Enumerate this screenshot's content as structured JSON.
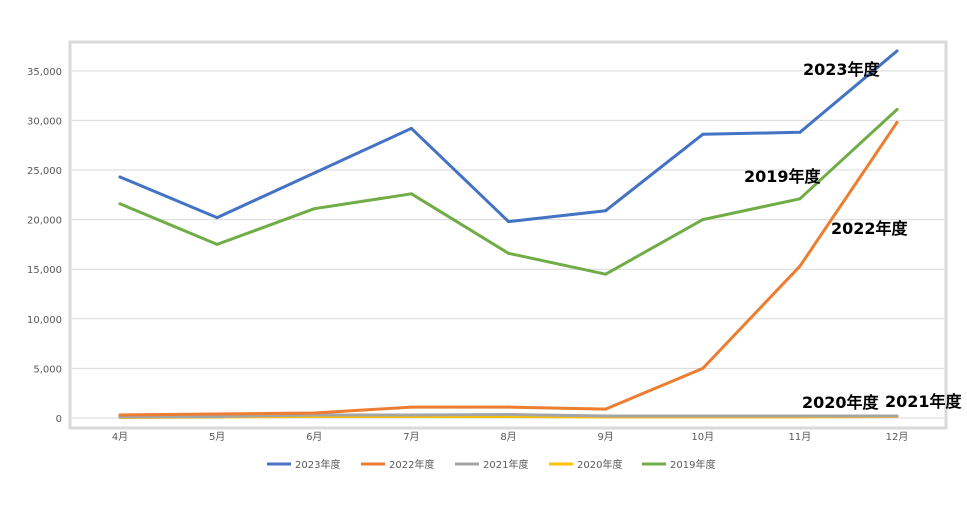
{
  "chart_data": {
    "type": "line",
    "title": "",
    "xlabel": "",
    "ylabel": "",
    "categories": [
      "4月",
      "5月",
      "6月",
      "7月",
      "8月",
      "9月",
      "10月",
      "11月",
      "12月"
    ],
    "ylim": [
      0,
      37000
    ],
    "yticks": [
      "0",
      "5,000",
      "10,000",
      "15,000",
      "20,000",
      "25,000",
      "30,000",
      "35,000"
    ],
    "grid": true,
    "legend_position": "bottom",
    "series": [
      {
        "name": "2023年度",
        "color": "#4472C4",
        "values": [
          24300,
          20200,
          24700,
          29200,
          19800,
          20900,
          28600,
          28800,
          37000
        ]
      },
      {
        "name": "2022年度",
        "color": "#ED7D31",
        "values": [
          300,
          400,
          500,
          1100,
          1100,
          900,
          5000,
          15300,
          29800
        ]
      },
      {
        "name": "2021年度",
        "color": "#A5A5A5",
        "values": [
          100,
          150,
          300,
          300,
          350,
          200,
          200,
          200,
          200
        ]
      },
      {
        "name": "2020年度",
        "color": "#FFC000",
        "values": [
          50,
          100,
          150,
          150,
          150,
          100,
          100,
          100,
          150
        ]
      },
      {
        "name": "2019年度",
        "color": "#70AD47",
        "values": [
          21600,
          17500,
          21100,
          22600,
          16600,
          14500,
          20000,
          22100,
          31100
        ]
      }
    ],
    "annotations": [
      {
        "text": "2023年度"
      },
      {
        "text": "2019年度"
      },
      {
        "text": "2022年度"
      },
      {
        "text": "2020年度"
      },
      {
        "text": "2021年度"
      }
    ]
  }
}
